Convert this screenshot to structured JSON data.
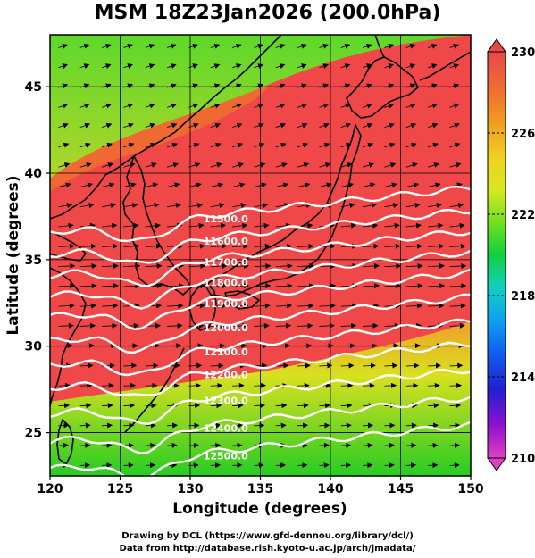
{
  "title": "MSM 18Z23Jan2026 (200.0hPa)",
  "map": {
    "xlabel": "Longitude (degrees)",
    "ylabel": "Latitude  (degrees)",
    "xlim": [
      120,
      150
    ],
    "ylim": [
      22.5,
      48
    ],
    "xticks": [
      "120",
      "125",
      "130",
      "135",
      "140",
      "145",
      "150"
    ],
    "yticks": [
      "25",
      "30",
      "35",
      "40",
      "45"
    ],
    "contours": [
      {
        "label": "11500.0",
        "base_lat": 36.6
      },
      {
        "label": "11600.0",
        "base_lat": 35.3
      },
      {
        "label": "11700.0",
        "base_lat": 34.1
      },
      {
        "label": "11800.0",
        "base_lat": 32.9
      },
      {
        "label": "11900.0",
        "base_lat": 31.7
      },
      {
        "label": "12000.0",
        "base_lat": 30.3
      },
      {
        "label": "12100.0",
        "base_lat": 28.9
      },
      {
        "label": "12200.0",
        "base_lat": 27.6
      },
      {
        "label": "12300.0",
        "base_lat": 26.1
      },
      {
        "label": "12400.0",
        "base_lat": 24.5
      },
      {
        "label": "12500.0",
        "base_lat": 22.9
      }
    ],
    "colors": {
      "jet_core": "#f04848",
      "mid": "#c8e020",
      "low": "#38d020",
      "contour": "#ffffff"
    }
  },
  "colorbar": {
    "tick_labels": [
      "230",
      "226",
      "222",
      "218",
      "214",
      "210"
    ],
    "colors": [
      "#e040c0",
      "#9010d0",
      "#2020d0",
      "#1060f0",
      "#10a0f0",
      "#10d0c0",
      "#10d040",
      "#70e020",
      "#d8e820",
      "#f0d020",
      "#f0a020",
      "#f07030",
      "#e84848"
    ]
  },
  "credit": {
    "line1": "Drawing by DCL (https://www.gfd-dennou.org/library/dcl/)",
    "line2": "Data from http://database.rish.kyoto-u.ac.jp/arch/jmadata/"
  }
}
